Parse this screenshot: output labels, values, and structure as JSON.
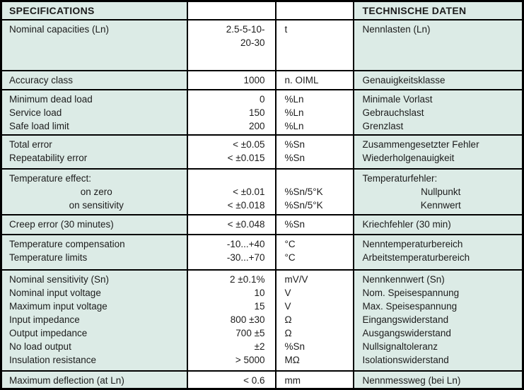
{
  "page": {
    "title_left": "SPECIFICATIONS",
    "title_right": "TECHNISCHE DATEN"
  },
  "colors": {
    "cell_bg": "#dcebe6",
    "value_bg": "#ffffff",
    "border": "#000000",
    "text": "#1c1c1c"
  },
  "table": {
    "columns": [
      "specification",
      "value",
      "unit",
      "german"
    ],
    "rows": [
      {
        "spec": [
          "Nominal capacities (Ln)"
        ],
        "value": [
          "2.5-5-10-",
          "20-30"
        ],
        "unit": [
          "t"
        ],
        "german": [
          "Nennlasten (Ln)"
        ]
      },
      {
        "spec": [
          "Accuracy class"
        ],
        "value": [
          "1000"
        ],
        "unit": [
          "n. OIML"
        ],
        "german": [
          "Genauigkeitsklasse"
        ]
      },
      {
        "spec": [
          "Minimum dead load",
          "Service load",
          "Safe load limit"
        ],
        "value": [
          "0",
          "150",
          "200"
        ],
        "unit": [
          "%Ln",
          "%Ln",
          "%Ln"
        ],
        "german": [
          "Minimale Vorlast",
          "Gebrauchslast",
          "Grenzlast"
        ]
      },
      {
        "spec": [
          "Total error",
          "Repeatability error"
        ],
        "value": [
          "< ±0.05",
          "< ±0.015"
        ],
        "unit": [
          "%Sn",
          "%Sn"
        ],
        "german": [
          "Zusammengesetzter Fehler",
          "Wiederholgenauigkeit"
        ]
      },
      {
        "spec": [
          "Temperature effect:",
          {
            "t": "on zero",
            "c": true
          },
          {
            "t": "on sensitivity",
            "c": true
          }
        ],
        "value": [
          "",
          "< ±0.01",
          "< ±0.018"
        ],
        "unit": [
          "",
          "%Sn/5°K",
          "%Sn/5°K"
        ],
        "german": [
          "Temperaturfehler:",
          {
            "t": "Nullpunkt",
            "c": true
          },
          {
            "t": "Kennwert",
            "c": true
          }
        ]
      },
      {
        "spec": [
          "Creep error (30 minutes)"
        ],
        "value": [
          "< ±0.048"
        ],
        "unit": [
          "%Sn"
        ],
        "german": [
          "Kriechfehler (30 min)"
        ]
      },
      {
        "spec": [
          "Temperature compensation",
          "Temperature limits"
        ],
        "value": [
          "-10...+40",
          "-30...+70"
        ],
        "unit": [
          "°C",
          "°C"
        ],
        "german": [
          "Nenntemperaturbereich",
          "Arbeitstemperaturbereich"
        ]
      },
      {
        "spec": [
          "Nominal sensitivity (Sn)",
          "Nominal input voltage",
          "Maximum input voltage",
          "Input impedance",
          "Output impedance",
          "No load output",
          "Insulation resistance"
        ],
        "value": [
          "2 ±0.1%",
          "10",
          "15",
          "800 ±30",
          "700 ±5",
          "±2",
          "> 5000"
        ],
        "unit": [
          "mV/V",
          "V",
          "V",
          "Ω",
          "Ω",
          "%Sn",
          "MΩ"
        ],
        "german": [
          "Nennkennwert (Sn)",
          "Nom. Speisespannung",
          "Max. Speisespannung",
          "Eingangswiderstand",
          "Ausgangswiderstand",
          "Nullsignaltoleranz",
          "Isolationswiderstand"
        ]
      },
      {
        "spec": [
          "Maximum deflection (at Ln)"
        ],
        "value": [
          "< 0.6"
        ],
        "unit": [
          "mm"
        ],
        "german": [
          "Nennmessweg (bei Ln)"
        ]
      }
    ]
  }
}
